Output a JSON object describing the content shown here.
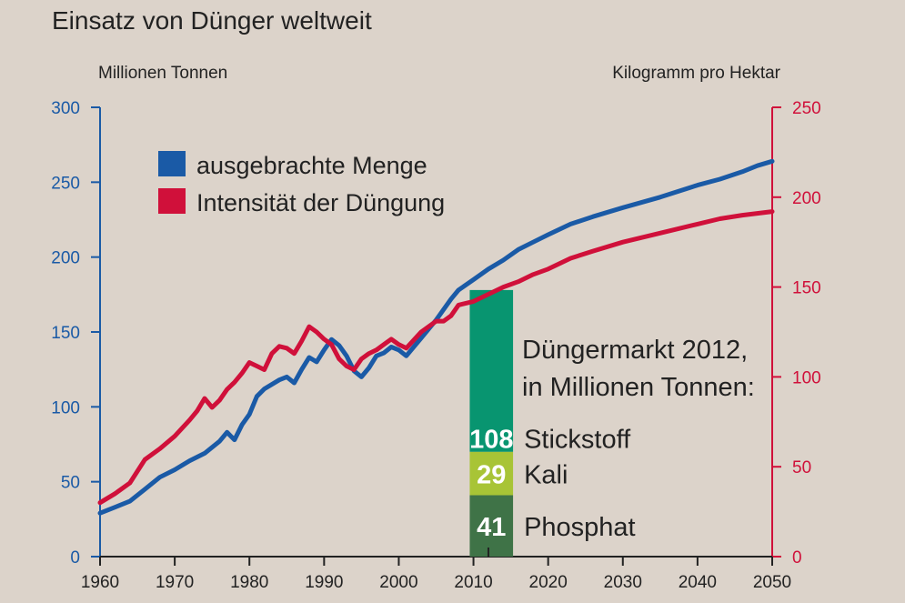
{
  "chart_data": {
    "type": "line",
    "title": "Einsatz von Dünger weltweit",
    "x": {
      "ticks": [
        1960,
        1970,
        1980,
        1990,
        2000,
        2010,
        2020,
        2030,
        2040,
        2050
      ],
      "range": [
        1960,
        2050
      ]
    },
    "y_left": {
      "label": "Millionen Tonnen",
      "range": [
        0,
        300
      ],
      "ticks": [
        0,
        50,
        100,
        150,
        200,
        250,
        300
      ],
      "color": "#1a5aa6"
    },
    "y_right": {
      "label": "Kilogramm pro Hektar",
      "range": [
        0,
        250
      ],
      "ticks": [
        0,
        50,
        100,
        150,
        200,
        250
      ],
      "color": "#d0103a"
    },
    "series": [
      {
        "name": "ausgebrachte Menge",
        "axis": "left",
        "color": "#1a5aa6",
        "points": [
          [
            1960,
            29
          ],
          [
            1962,
            33
          ],
          [
            1964,
            37
          ],
          [
            1966,
            45
          ],
          [
            1968,
            53
          ],
          [
            1970,
            58
          ],
          [
            1972,
            64
          ],
          [
            1974,
            69
          ],
          [
            1976,
            77
          ],
          [
            1977,
            83
          ],
          [
            1978,
            78
          ],
          [
            1979,
            88
          ],
          [
            1980,
            95
          ],
          [
            1981,
            107
          ],
          [
            1982,
            112
          ],
          [
            1984,
            118
          ],
          [
            1985,
            120
          ],
          [
            1986,
            116
          ],
          [
            1987,
            125
          ],
          [
            1988,
            133
          ],
          [
            1989,
            130
          ],
          [
            1990,
            138
          ],
          [
            1991,
            145
          ],
          [
            1992,
            141
          ],
          [
            1993,
            134
          ],
          [
            1994,
            124
          ],
          [
            1995,
            120
          ],
          [
            1996,
            126
          ],
          [
            1997,
            134
          ],
          [
            1998,
            136
          ],
          [
            1999,
            140
          ],
          [
            2000,
            138
          ],
          [
            2001,
            134
          ],
          [
            2003,
            146
          ],
          [
            2005,
            158
          ],
          [
            2007,
            172
          ],
          [
            2008,
            178
          ],
          [
            2010,
            185
          ],
          [
            2012,
            192
          ],
          [
            2014,
            198
          ],
          [
            2016,
            205
          ],
          [
            2018,
            210
          ],
          [
            2020,
            215
          ],
          [
            2023,
            222
          ],
          [
            2026,
            227
          ],
          [
            2030,
            233
          ],
          [
            2035,
            240
          ],
          [
            2040,
            248
          ],
          [
            2043,
            252
          ],
          [
            2046,
            257
          ],
          [
            2048,
            261
          ],
          [
            2050,
            264
          ]
        ]
      },
      {
        "name": "Intensität der Düngung",
        "axis": "right",
        "color": "#d0103a",
        "points": [
          [
            1960,
            30
          ],
          [
            1962,
            35
          ],
          [
            1964,
            41
          ],
          [
            1966,
            54
          ],
          [
            1968,
            60
          ],
          [
            1970,
            67
          ],
          [
            1972,
            76
          ],
          [
            1973,
            81
          ],
          [
            1974,
            88
          ],
          [
            1975,
            83
          ],
          [
            1976,
            87
          ],
          [
            1977,
            93
          ],
          [
            1978,
            97
          ],
          [
            1979,
            102
          ],
          [
            1980,
            108
          ],
          [
            1981,
            106
          ],
          [
            1982,
            104
          ],
          [
            1983,
            113
          ],
          [
            1984,
            117
          ],
          [
            1985,
            116
          ],
          [
            1986,
            113
          ],
          [
            1987,
            120
          ],
          [
            1988,
            128
          ],
          [
            1989,
            125
          ],
          [
            1990,
            121
          ],
          [
            1991,
            118
          ],
          [
            1992,
            110
          ],
          [
            1993,
            106
          ],
          [
            1994,
            104
          ],
          [
            1995,
            110
          ],
          [
            1996,
            113
          ],
          [
            1997,
            115
          ],
          [
            1998,
            118
          ],
          [
            1999,
            121
          ],
          [
            2000,
            118
          ],
          [
            2001,
            116
          ],
          [
            2003,
            125
          ],
          [
            2005,
            131
          ],
          [
            2006,
            131
          ],
          [
            2007,
            134
          ],
          [
            2008,
            140
          ],
          [
            2010,
            142
          ],
          [
            2012,
            146
          ],
          [
            2014,
            150
          ],
          [
            2016,
            153
          ],
          [
            2018,
            157
          ],
          [
            2020,
            160
          ],
          [
            2023,
            166
          ],
          [
            2026,
            170
          ],
          [
            2030,
            175
          ],
          [
            2035,
            180
          ],
          [
            2040,
            185
          ],
          [
            2043,
            188
          ],
          [
            2046,
            190
          ],
          [
            2050,
            192
          ]
        ]
      }
    ],
    "market": {
      "title_line1": "Düngermarkt 2012,",
      "title_line2": "in Millionen Tonnen:",
      "x_range": [
        2009.5,
        2015.3
      ],
      "segments": [
        {
          "value": 41,
          "label": "Phosphat",
          "color": "#3f7347"
        },
        {
          "value": 29,
          "label": "Kali",
          "color": "#a8c436"
        },
        {
          "value": 108,
          "label": "Stickstoff",
          "color": "#089570"
        }
      ]
    }
  }
}
